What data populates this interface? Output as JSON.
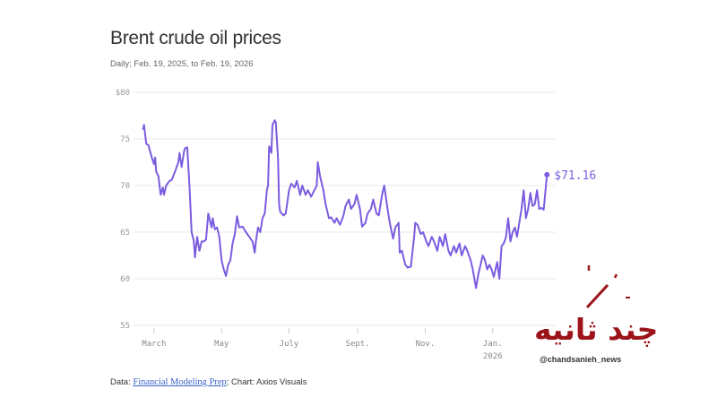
{
  "chart_data": {
    "type": "line",
    "title": "Brent crude oil prices",
    "subtitle": "Daily; Feb. 19, 2025, to Feb. 19, 2026",
    "xlabel": "",
    "ylabel": "",
    "x_unit": "days since Feb. 19, 2025",
    "xlim": [
      0,
      365
    ],
    "ylim": [
      55,
      80
    ],
    "y_ticks": [
      {
        "value": 80,
        "label": "$80"
      },
      {
        "value": 75,
        "label": "75"
      },
      {
        "value": 70,
        "label": "70"
      },
      {
        "value": 65,
        "label": "65"
      },
      {
        "value": 60,
        "label": "60"
      },
      {
        "value": 55,
        "label": "55"
      }
    ],
    "x_ticks": [
      {
        "day": 10,
        "label": "March",
        "sub": ""
      },
      {
        "day": 71,
        "label": "May",
        "sub": ""
      },
      {
        "day": 132,
        "label": "July",
        "sub": ""
      },
      {
        "day": 194,
        "label": "Sept.",
        "sub": ""
      },
      {
        "day": 255,
        "label": "Nov.",
        "sub": ""
      },
      {
        "day": 316,
        "label": "Jan.",
        "sub": "2026"
      }
    ],
    "grid": true,
    "color": "#7b5ce0",
    "end_label": "$71.16",
    "series": [
      {
        "name": "Brent crude",
        "points": [
          [
            0,
            76.0
          ],
          [
            1,
            76.5
          ],
          [
            3,
            74.5
          ],
          [
            5,
            74.3
          ],
          [
            8,
            73.0
          ],
          [
            10,
            72.3
          ],
          [
            11,
            73.0
          ],
          [
            12,
            71.5
          ],
          [
            14,
            71.0
          ],
          [
            16,
            69.0
          ],
          [
            18,
            69.8
          ],
          [
            19,
            69.0
          ],
          [
            21,
            70.0
          ],
          [
            24,
            70.5
          ],
          [
            26,
            70.6
          ],
          [
            29,
            71.5
          ],
          [
            32,
            72.5
          ],
          [
            33,
            73.5
          ],
          [
            35,
            72.0
          ],
          [
            37,
            73.6
          ],
          [
            38,
            74.0
          ],
          [
            40,
            74.1
          ],
          [
            42,
            70.0
          ],
          [
            44,
            65.0
          ],
          [
            46,
            64.0
          ],
          [
            47,
            62.3
          ],
          [
            49,
            64.5
          ],
          [
            51,
            63.0
          ],
          [
            53,
            64.0
          ],
          [
            55,
            64.0
          ],
          [
            57,
            64.2
          ],
          [
            59,
            67.0
          ],
          [
            61,
            66.0
          ],
          [
            62,
            65.5
          ],
          [
            63,
            66.5
          ],
          [
            65,
            65.3
          ],
          [
            67,
            65.5
          ],
          [
            69,
            64.5
          ],
          [
            71,
            62.0
          ],
          [
            73,
            61.0
          ],
          [
            75,
            60.3
          ],
          [
            77,
            61.5
          ],
          [
            79,
            62.0
          ],
          [
            81,
            63.8
          ],
          [
            83,
            64.8
          ],
          [
            85,
            66.7
          ],
          [
            87,
            65.5
          ],
          [
            90,
            65.6
          ],
          [
            93,
            65.0
          ],
          [
            96,
            64.5
          ],
          [
            99,
            64.0
          ],
          [
            101,
            62.8
          ],
          [
            102,
            64.0
          ],
          [
            104,
            65.5
          ],
          [
            106,
            65.0
          ],
          [
            108,
            66.5
          ],
          [
            110,
            67.0
          ],
          [
            112,
            69.5
          ],
          [
            113,
            70.0
          ],
          [
            114,
            74.2
          ],
          [
            116,
            73.5
          ],
          [
            117,
            76.5
          ],
          [
            119,
            77.0
          ],
          [
            120,
            76.8
          ],
          [
            122,
            73.0
          ],
          [
            123,
            68.0
          ],
          [
            124,
            67.2
          ],
          [
            127,
            66.8
          ],
          [
            129,
            67.0
          ],
          [
            132,
            69.5
          ],
          [
            134,
            70.2
          ],
          [
            137,
            69.8
          ],
          [
            139,
            70.5
          ],
          [
            142,
            69.0
          ],
          [
            144,
            70.0
          ],
          [
            147,
            69.0
          ],
          [
            149,
            69.5
          ],
          [
            152,
            68.8
          ],
          [
            154,
            69.3
          ],
          [
            157,
            70.0
          ],
          [
            158,
            72.5
          ],
          [
            160,
            71.0
          ],
          [
            163,
            69.5
          ],
          [
            165,
            68.0
          ],
          [
            168,
            66.5
          ],
          [
            170,
            66.6
          ],
          [
            173,
            66.0
          ],
          [
            175,
            66.5
          ],
          [
            178,
            65.8
          ],
          [
            181,
            66.7
          ],
          [
            183,
            67.8
          ],
          [
            186,
            68.5
          ],
          [
            188,
            67.5
          ],
          [
            191,
            68.0
          ],
          [
            193,
            69.0
          ],
          [
            196,
            67.5
          ],
          [
            198,
            65.6
          ],
          [
            201,
            66.0
          ],
          [
            203,
            67.0
          ],
          [
            206,
            67.5
          ],
          [
            208,
            68.5
          ],
          [
            211,
            67.0
          ],
          [
            213,
            66.8
          ],
          [
            216,
            69.0
          ],
          [
            218,
            70.0
          ],
          [
            221,
            67.5
          ],
          [
            223,
            66.0
          ],
          [
            226,
            64.3
          ],
          [
            228,
            65.5
          ],
          [
            231,
            66.0
          ],
          [
            232,
            62.8
          ],
          [
            234,
            63.0
          ],
          [
            237,
            61.5
          ],
          [
            239,
            61.2
          ],
          [
            242,
            61.3
          ],
          [
            245,
            64.5
          ],
          [
            246,
            66.0
          ],
          [
            248,
            65.8
          ],
          [
            251,
            64.8
          ],
          [
            253,
            65.0
          ],
          [
            256,
            64.0
          ],
          [
            258,
            63.5
          ],
          [
            261,
            64.5
          ],
          [
            263,
            64.0
          ],
          [
            266,
            63.0
          ],
          [
            268,
            64.5
          ],
          [
            271,
            63.5
          ],
          [
            273,
            64.8
          ],
          [
            276,
            63.0
          ],
          [
            278,
            62.5
          ],
          [
            281,
            63.5
          ],
          [
            283,
            62.8
          ],
          [
            286,
            63.8
          ],
          [
            288,
            62.5
          ],
          [
            291,
            63.5
          ],
          [
            293,
            63.0
          ],
          [
            296,
            62.0
          ],
          [
            298,
            61.0
          ],
          [
            301,
            59.0
          ],
          [
            303,
            60.5
          ],
          [
            305,
            61.5
          ],
          [
            307,
            62.5
          ],
          [
            309,
            62.0
          ],
          [
            311,
            61.0
          ],
          [
            313,
            61.5
          ],
          [
            315,
            61.0
          ],
          [
            317,
            60.2
          ],
          [
            320,
            61.8
          ],
          [
            322,
            60.0
          ],
          [
            324,
            63.5
          ],
          [
            326,
            63.8
          ],
          [
            328,
            64.5
          ],
          [
            330,
            66.5
          ],
          [
            332,
            64.0
          ],
          [
            334,
            65.0
          ],
          [
            336,
            65.5
          ],
          [
            338,
            64.5
          ],
          [
            340,
            66.0
          ],
          [
            342,
            67.5
          ],
          [
            344,
            69.5
          ],
          [
            346,
            66.5
          ],
          [
            348,
            67.5
          ],
          [
            350,
            69.2
          ],
          [
            352,
            67.8
          ],
          [
            354,
            68.0
          ],
          [
            356,
            69.5
          ],
          [
            358,
            67.5
          ],
          [
            360,
            67.6
          ],
          [
            362,
            67.4
          ],
          [
            365,
            71.16
          ]
        ]
      }
    ]
  },
  "footer": {
    "prefix": "Data: ",
    "source_link": "Financial Modeling Prep",
    "suffix": "; Chart: Axios Visuals"
  },
  "watermark": {
    "name": "چند ثانیه",
    "handle": "@chandsanieh_news"
  }
}
